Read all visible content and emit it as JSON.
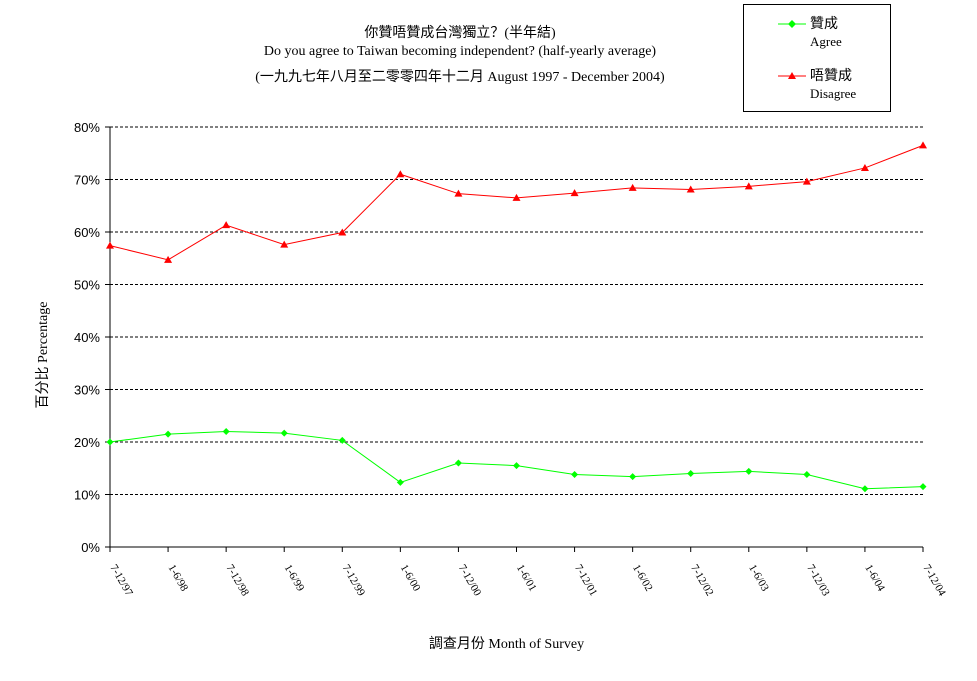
{
  "chart_data": {
    "type": "line",
    "title": "你贊唔贊成台灣獨立？(半年結)",
    "subtitle": "Do you agree to Taiwan becoming independent? (half-yearly average)",
    "subtitle2": "(一九九七年八月至二零零四年十二月 August 1997 - December 2004)",
    "xlabel": "調查月份 Month of Survey",
    "ylabel": "百分比 Percentage",
    "ylim": [
      0,
      80
    ],
    "yticks": [
      "0%",
      "10%",
      "20%",
      "30%",
      "40%",
      "50%",
      "60%",
      "70%",
      "80%"
    ],
    "grid": true,
    "legend_position": "top-right",
    "categories": [
      "7-12/97",
      "1-6/98",
      "7-12/98",
      "1-6/99",
      "7-12/99",
      "1-6/00",
      "7-12/00",
      "1-6/01",
      "7-12/01",
      "1-6/02",
      "7-12/02",
      "1-6/03",
      "7-12/03",
      "1-6/04",
      "7-12/04"
    ],
    "series": [
      {
        "name_zh": "贊成",
        "name_en": "Agree",
        "color": "#00ff00",
        "marker": "diamond",
        "values": [
          20.0,
          21.5,
          22.0,
          21.7,
          20.3,
          12.3,
          16.0,
          15.5,
          13.8,
          13.4,
          14.0,
          14.4,
          13.8,
          11.1,
          11.5
        ]
      },
      {
        "name_zh": "唔贊成",
        "name_en": "Disagree",
        "color": "#ff0000",
        "marker": "triangle",
        "values": [
          57.4,
          54.7,
          61.3,
          57.6,
          59.9,
          71.0,
          67.3,
          66.5,
          67.4,
          68.4,
          68.1,
          68.7,
          69.6,
          72.2,
          76.5
        ]
      }
    ]
  }
}
